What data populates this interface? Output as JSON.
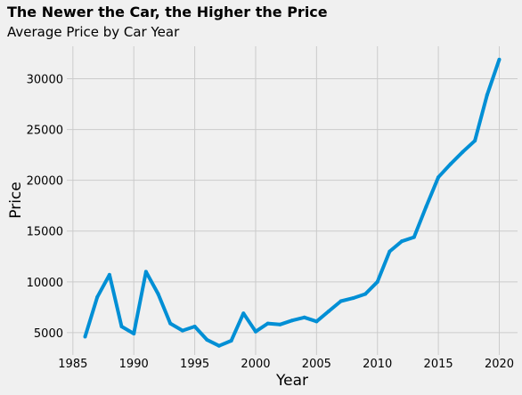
{
  "chart_data": {
    "type": "line",
    "title": "The Newer the Car, the Higher the Price",
    "subtitle": "Average Price by Car Year",
    "xlabel": "Year",
    "ylabel": "Price",
    "xlim": [
      1984.5,
      2021.5
    ],
    "ylim": [
      2800,
      33200
    ],
    "xticks": [
      1985,
      1990,
      1995,
      2000,
      2005,
      2010,
      2015,
      2020
    ],
    "yticks": [
      5000,
      10000,
      15000,
      20000,
      25000,
      30000
    ],
    "grid": true,
    "line_color": "#008fd5",
    "background_color": "#f0f0f0",
    "series": [
      {
        "x": [
          1986,
          1987,
          1988,
          1989,
          1990,
          1991,
          1992,
          1993,
          1994,
          1995,
          1996,
          1997,
          1998,
          1999,
          2000,
          2001,
          2002,
          2003,
          2004,
          2005,
          2006,
          2007,
          2008,
          2009,
          2010,
          2011,
          2012,
          2013,
          2014,
          2015,
          2016,
          2017,
          2018,
          2019,
          2020
        ],
        "values": [
          4600,
          8500,
          10700,
          5600,
          4900,
          11000,
          8800,
          5900,
          5200,
          5600,
          4300,
          3700,
          4200,
          6900,
          5100,
          5900,
          5800,
          6200,
          6500,
          6100,
          7100,
          8100,
          8400,
          8800,
          10000,
          13000,
          14000,
          14400,
          17400,
          20300,
          21600,
          22800,
          23900,
          28400,
          31900
        ]
      }
    ]
  }
}
